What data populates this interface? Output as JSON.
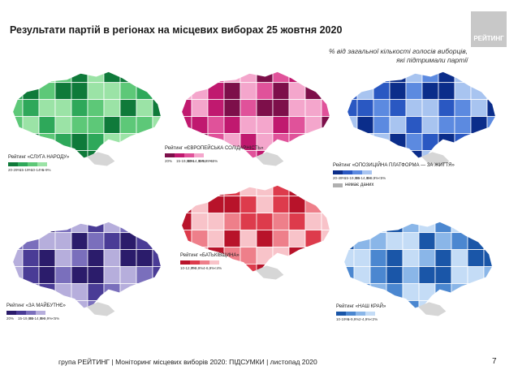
{
  "header": {
    "title": "Результати партій в регіонах на місцевих виборах 25 жовтня 2020",
    "logo_text": "РЕЙТИНГ",
    "subtitle_line1": "% від загальної кількості голосів виборців,",
    "subtitle_line2": "які підтримали партії"
  },
  "maps": [
    {
      "key": "sluha",
      "legend_title": "Рейтинг «СЛУГА НАРОДУ»",
      "palette": [
        "#0f7a3a",
        "#2ea85a",
        "#5dc878",
        "#9be3a6"
      ],
      "ticks": [
        "20-29%",
        "15-19%",
        "10-14%",
        "5-9%"
      ],
      "extra_legend": ""
    },
    {
      "key": "es",
      "legend_title": "Рейтинг «ЄВРОПЕЙСЬКА СОЛІДАРНІСТЬ»",
      "palette": [
        "#7d0f4a",
        "#c0196f",
        "#e0529a",
        "#f4a6cc"
      ],
      "ticks": [
        "20%",
        "15-19,99%",
        "10-14,99%",
        "5-9,99%",
        "<5%"
      ],
      "extra_legend": ""
    },
    {
      "key": "opzzh",
      "legend_title": "Рейтинг «ОПОЗИЦІЙНА ПЛАТФОРМА — ЗА ЖИТТЯ»",
      "palette": [
        "#0b2d8a",
        "#2a58c2",
        "#5c8ae0",
        "#a8c4f0"
      ],
      "ticks": [
        "20-49%",
        "15-19,9%",
        "10-14,9%",
        "5-9,9%",
        "<5%"
      ],
      "extra_legend": "немає даних"
    },
    {
      "key": "batk",
      "legend_title": "Рейтинг «БАТЬКІВЩИНА»",
      "palette": [
        "#b8132a",
        "#dd3b4c",
        "#ee7f8a",
        "#f8c3c9"
      ],
      "ticks": [
        "10-12,9%",
        "7-9,9%",
        "4-6,9%",
        "<4%"
      ],
      "extra_legend": ""
    },
    {
      "key": "zamaybutne",
      "legend_title": "Рейтинг «ЗА МАЙБУТНЄ»",
      "palette": [
        "#2b1c6b",
        "#4a3c96",
        "#7a6fbc",
        "#b6aedc"
      ],
      "ticks": [
        "20%",
        "15-19,9%",
        "10-14,9%",
        "5-9,9%",
        "<5%"
      ],
      "extra_legend": ""
    },
    {
      "key": "nashkrai",
      "legend_title": "Рейтинг «НАШ КРАЙ»",
      "palette": [
        "#1a56a8",
        "#4b87d0",
        "#8ab6e8",
        "#c4dcf6"
      ],
      "ticks": [
        "10-19%",
        "5-9,9%",
        "2-4,9%",
        "<2%"
      ],
      "extra_legend": ""
    }
  ],
  "footer": {
    "text": "група РЕЙТИНГ | Моніторинг місцевих виборів 2020: ПІДСУМКИ | листопад 2020",
    "page_number": "7"
  }
}
